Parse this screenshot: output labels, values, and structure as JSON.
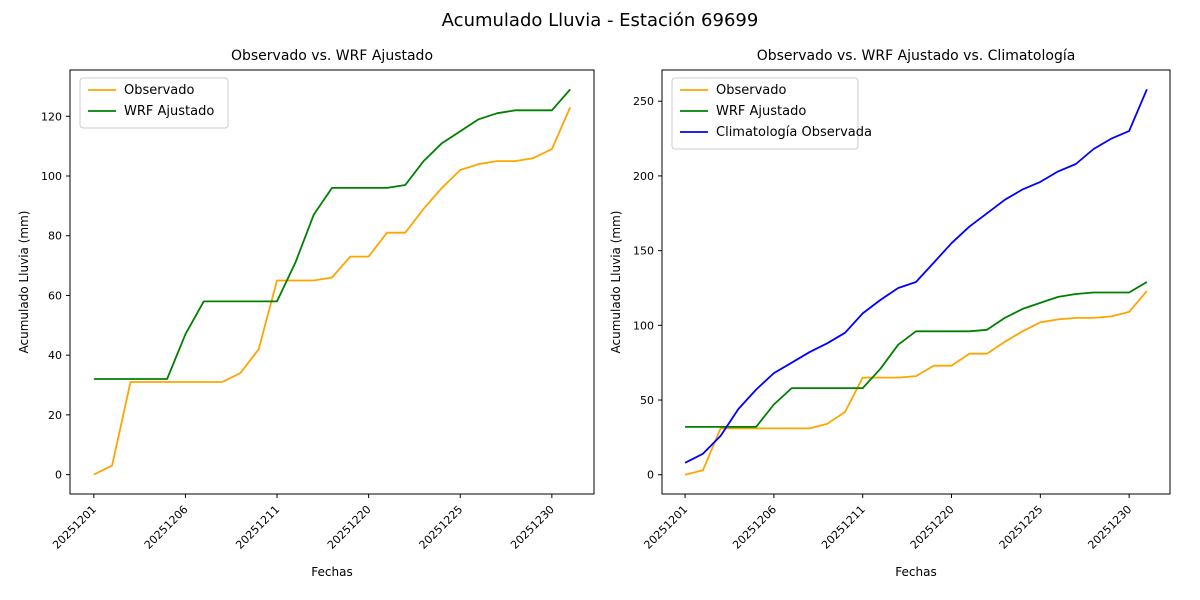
{
  "suptitle": "Acumulado Lluvia - Estación 69699",
  "chart_data": [
    {
      "type": "line",
      "title": "Observado vs. WRF Ajustado",
      "xlabel": "Fechas",
      "ylabel": "Acumulado Lluvia (mm)",
      "n_points": 27,
      "xlim": [
        -1.3,
        27.3
      ],
      "ylim": [
        -6.5,
        135.5
      ],
      "y_ticks": [
        0,
        20,
        40,
        60,
        80,
        100,
        120
      ],
      "x_tick_indices": [
        0,
        5,
        10,
        15,
        20,
        25
      ],
      "x_tick_labels": [
        "20251201",
        "20251206",
        "20251211",
        "20251220",
        "20251225",
        "20251230"
      ],
      "grid": false,
      "legend_position": "upper left",
      "series": [
        {
          "name": "Observado",
          "color": "#FFA500",
          "values": [
            0,
            3,
            31,
            31,
            31,
            31,
            31,
            31,
            34,
            42,
            65,
            65,
            65,
            66,
            73,
            73,
            81,
            81,
            89,
            96,
            102,
            104,
            105,
            105,
            106,
            109,
            123
          ]
        },
        {
          "name": "WRF Ajustado",
          "color": "#008000",
          "values": [
            32,
            32,
            32,
            32,
            32,
            47,
            58,
            58,
            58,
            58,
            58,
            71,
            87,
            96,
            96,
            96,
            96,
            97,
            105,
            111,
            115,
            119,
            121,
            122,
            122,
            122,
            129
          ]
        }
      ]
    },
    {
      "type": "line",
      "title": "Observado vs. WRF Ajustado vs. Climatología",
      "xlabel": "Fechas",
      "ylabel": "Acumulado Lluvia (mm)",
      "n_points": 27,
      "xlim": [
        -1.3,
        27.3
      ],
      "ylim": [
        -12.9,
        270.9
      ],
      "y_ticks": [
        0,
        50,
        100,
        150,
        200,
        250
      ],
      "x_tick_indices": [
        0,
        5,
        10,
        15,
        20,
        25
      ],
      "x_tick_labels": [
        "20251201",
        "20251206",
        "20251211",
        "20251220",
        "20251225",
        "20251230"
      ],
      "grid": false,
      "legend_position": "upper left",
      "series": [
        {
          "name": "Observado",
          "color": "#FFA500",
          "values": [
            0,
            3,
            31,
            31,
            31,
            31,
            31,
            31,
            34,
            42,
            65,
            65,
            65,
            66,
            73,
            73,
            81,
            81,
            89,
            96,
            102,
            104,
            105,
            105,
            106,
            109,
            123
          ]
        },
        {
          "name": "WRF Ajustado",
          "color": "#008000",
          "values": [
            32,
            32,
            32,
            32,
            32,
            47,
            58,
            58,
            58,
            58,
            58,
            71,
            87,
            96,
            96,
            96,
            96,
            97,
            105,
            111,
            115,
            119,
            121,
            122,
            122,
            122,
            129
          ]
        },
        {
          "name": "Climatología Observada",
          "color": "#0000FF",
          "values": [
            8,
            14,
            26,
            44,
            57,
            68,
            75,
            82,
            88,
            95,
            108,
            117,
            125,
            129,
            142,
            155,
            166,
            175,
            184,
            191,
            196,
            203,
            208,
            218,
            225,
            230,
            258
          ]
        }
      ]
    }
  ],
  "colors": {
    "spine": "#000000",
    "legend_border": "#cccccc",
    "background": "#ffffff"
  }
}
